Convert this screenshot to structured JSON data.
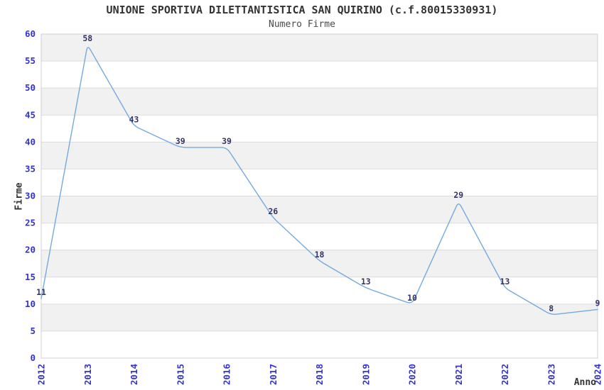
{
  "chart_data": {
    "type": "line",
    "title": "UNIONE SPORTIVA DILETTANTISTICA SAN QUIRINO (c.f.80015330931)",
    "subtitle": "Numero Firme",
    "xlabel": "Anno",
    "ylabel": "Firme",
    "categories": [
      "2012",
      "2013",
      "2014",
      "2015",
      "2016",
      "2017",
      "2018",
      "2019",
      "2020",
      "2021",
      "2022",
      "2023",
      "2024"
    ],
    "values": [
      11,
      58,
      43,
      39,
      39,
      26,
      18,
      13,
      10,
      29,
      13,
      8,
      9
    ],
    "ylim": [
      0,
      60
    ],
    "ytick_step": 5,
    "yticks": [
      0,
      5,
      10,
      15,
      20,
      25,
      30,
      35,
      40,
      45,
      50,
      55,
      60
    ],
    "grid": "horizontal-bands",
    "legend_position": "none",
    "point_labels_visible": true
  },
  "colors": {
    "line": "#74A9E0",
    "tick_label": "#3333CC",
    "point_label": "#333366",
    "band": "#F1F1F1",
    "gridline": "#DCDCDC",
    "plot_border": "#D0D0D0",
    "plot_background": "#FFFFFF",
    "title": "#333333",
    "subtitle": "#4A4A4A",
    "axis_label": "#333333"
  }
}
